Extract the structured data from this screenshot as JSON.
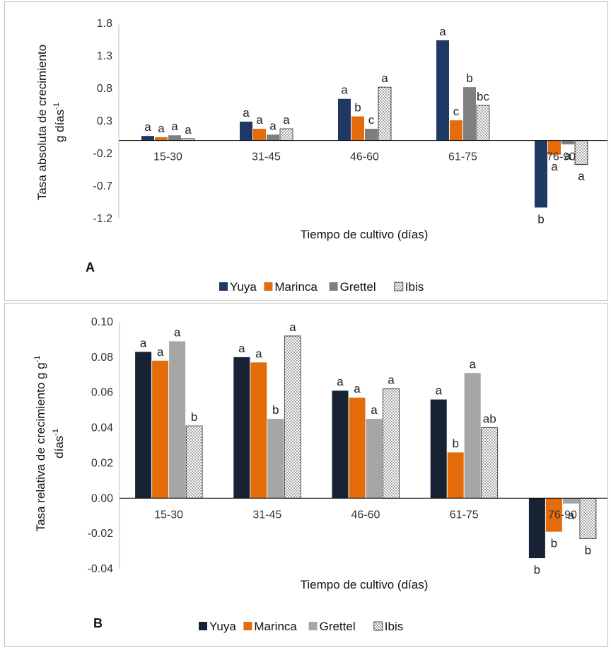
{
  "colors": {
    "Yuya_A": "#1f3864",
    "Yuya_B": "#172234",
    "Marinca": "#e46c0a",
    "Grettel_A": "#7f7f7f",
    "Grettel_B": "#a6a6a6",
    "Ibis": "dotted-white"
  },
  "chart_data": [
    {
      "type": "bar",
      "panel_letter": "A",
      "ylabel_line1": "Tasa absoluta de crecimiento",
      "ylabel_line2": "g días",
      "ylabel_sup": "-1",
      "xlabel": "Tiempo de cultivo (días)",
      "ylim": [
        -1.2,
        1.8
      ],
      "yticks": [
        "1.8",
        "1.3",
        "0.8",
        "0.3",
        "-0.2",
        "-0.7",
        "-1.2"
      ],
      "categories": [
        "15-30",
        "31-45",
        "46-60",
        "61-75",
        "76-90"
      ],
      "legend": [
        "Yuya",
        "Marinca",
        "Grettel",
        "Ibis"
      ],
      "legend_position": "bottom",
      "grid": false,
      "series": [
        {
          "name": "Yuya",
          "values": [
            0.07,
            0.29,
            0.64,
            1.54,
            -1.03
          ],
          "letters": [
            "a",
            "a",
            "a",
            "a",
            "b"
          ]
        },
        {
          "name": "Marinca",
          "values": [
            0.05,
            0.18,
            0.37,
            0.31,
            -0.22
          ],
          "letters": [
            "a",
            "a",
            "b",
            "c",
            "a"
          ]
        },
        {
          "name": "Grettel",
          "values": [
            0.08,
            0.09,
            0.18,
            0.82,
            -0.06
          ],
          "letters": [
            "a",
            "a",
            "c",
            "b",
            "a"
          ]
        },
        {
          "name": "Ibis",
          "values": [
            0.03,
            0.18,
            0.82,
            0.54,
            -0.37
          ],
          "letters": [
            "a",
            "a",
            "a",
            "bc",
            "a"
          ]
        }
      ]
    },
    {
      "type": "bar",
      "panel_letter": "B",
      "ylabel_line1": "Tasa relativa  de crecimiento g g",
      "ylabel_sup1": "-1",
      "ylabel_line2": "días",
      "ylabel_sup2": "-1",
      "xlabel": "Tiempo de cultivo (días)",
      "ylim": [
        -0.04,
        0.1
      ],
      "yticks": [
        "0.10",
        "0.08",
        "0.06",
        "0.04",
        "0.02",
        "0.00",
        "-0.02",
        "-0.04"
      ],
      "categories": [
        "15-30",
        "31-45",
        "46-60",
        "61-75",
        "76-90"
      ],
      "legend": [
        "Yuya",
        "Marinca",
        "Grettel",
        "Ibis"
      ],
      "legend_position": "bottom",
      "grid": false,
      "series": [
        {
          "name": "Yuya",
          "values": [
            0.083,
            0.08,
            0.061,
            0.056,
            -0.034
          ],
          "letters": [
            "a",
            "a",
            "a",
            "a",
            "b"
          ]
        },
        {
          "name": "Marinca",
          "values": [
            0.078,
            0.077,
            0.057,
            0.026,
            -0.019
          ],
          "letters": [
            "a",
            "a",
            "a",
            "b",
            "b"
          ]
        },
        {
          "name": "Grettel",
          "values": [
            0.089,
            0.045,
            0.045,
            0.071,
            -0.003
          ],
          "letters": [
            "a",
            "b",
            "a",
            "a",
            "a"
          ]
        },
        {
          "name": "Ibis",
          "values": [
            0.041,
            0.092,
            0.062,
            0.04,
            -0.023
          ],
          "letters": [
            "b",
            "a",
            "a",
            "ab",
            "b"
          ]
        }
      ]
    }
  ]
}
